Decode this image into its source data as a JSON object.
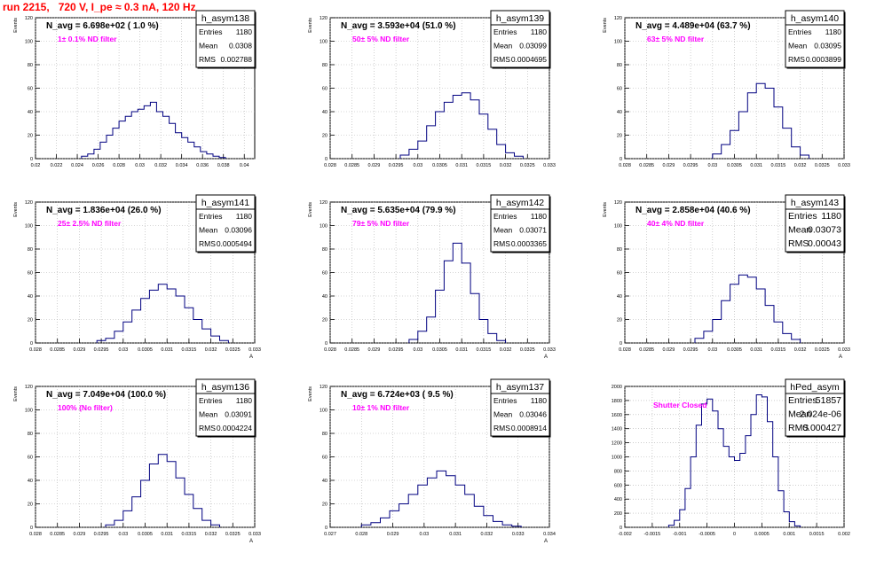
{
  "page_title": "run 2215,   720 V, I_pe ≈ 0.3 nA, 120 Hz",
  "colors": {
    "title": "#ff0000",
    "annotation": "#ff00ff",
    "histogram": "#000080",
    "grid": "#b0b0b0"
  },
  "chart_data": [
    {
      "type": "histogram",
      "stats_title": "h_asym138",
      "header": "N_avg = 6.698e+02 ( 1.0 %)",
      "annotation": "1± 0.1% ND filter",
      "stats": [
        [
          "Entries",
          "1180"
        ],
        [
          "Mean",
          "0.0308"
        ],
        [
          "RMS",
          "0.002788"
        ]
      ],
      "ylabel": "Events",
      "xlabel": "",
      "xlim": [
        0.02,
        0.041
      ],
      "ylim": [
        0,
        120
      ],
      "xticks": [
        "0.02",
        "0.022",
        "0.024",
        "0.026",
        "0.028",
        "0.03",
        "0.032",
        "0.034",
        "0.036",
        "0.038",
        "0.04"
      ],
      "yticks": [
        "0",
        "20",
        "40",
        "60",
        "80",
        "100",
        "120"
      ],
      "bin_edges": [
        0.0244,
        0.025,
        0.0256,
        0.0262,
        0.0268,
        0.0274,
        0.028,
        0.0286,
        0.0292,
        0.0298,
        0.0304,
        0.031,
        0.0316,
        0.0322,
        0.0328,
        0.0334,
        0.034,
        0.0346,
        0.0352,
        0.0358,
        0.0364,
        0.037,
        0.0376,
        0.0382
      ],
      "counts": [
        2,
        4,
        8,
        14,
        20,
        26,
        32,
        36,
        40,
        42,
        45,
        48,
        40,
        36,
        30,
        22,
        18,
        14,
        10,
        6,
        4,
        2,
        1
      ]
    },
    {
      "type": "histogram",
      "stats_title": "h_asym139",
      "header": "N_avg = 3.593e+04 (51.0 %)",
      "annotation": "50± 5% ND filter",
      "stats": [
        [
          "Entries",
          "1180"
        ],
        [
          "Mean",
          "0.03099"
        ],
        [
          "RMS",
          "0.0004695"
        ]
      ],
      "ylabel": "Events",
      "xlabel": "",
      "xlim": [
        0.028,
        0.033
      ],
      "ylim": [
        0,
        120
      ],
      "xticks": [
        "0.028",
        "0.0285",
        "0.029",
        "0.0295",
        "0.03",
        "0.0305",
        "0.031",
        "0.0315",
        "0.032",
        "0.0325",
        "0.033"
      ],
      "yticks": [
        "0",
        "20",
        "40",
        "60",
        "80",
        "100",
        "120"
      ],
      "bin_edges": [
        0.0296,
        0.0298,
        0.03,
        0.0302,
        0.0304,
        0.0306,
        0.0308,
        0.031,
        0.0312,
        0.0314,
        0.0316,
        0.0318,
        0.032,
        0.0322,
        0.0324
      ],
      "counts": [
        3,
        8,
        15,
        28,
        40,
        48,
        54,
        56,
        50,
        38,
        25,
        12,
        5,
        2
      ]
    },
    {
      "type": "histogram",
      "stats_title": "h_asym140",
      "header": "N_avg = 4.489e+04 (63.7 %)",
      "annotation": "63± 5% ND filter",
      "stats": [
        [
          "Entries",
          "1180"
        ],
        [
          "Mean",
          "0.03095"
        ],
        [
          "RMS",
          "0.0003899"
        ]
      ],
      "ylabel": "Events",
      "xlabel": "",
      "xlim": [
        0.028,
        0.033
      ],
      "ylim": [
        0,
        120
      ],
      "xticks": [
        "0.028",
        "0.0285",
        "0.029",
        "0.0295",
        "0.03",
        "0.0305",
        "0.031",
        "0.0315",
        "0.032",
        "0.0325",
        "0.033"
      ],
      "yticks": [
        "0",
        "20",
        "40",
        "60",
        "80",
        "100",
        "120"
      ],
      "bin_edges": [
        0.03,
        0.0302,
        0.0304,
        0.0306,
        0.0308,
        0.031,
        0.0312,
        0.0314,
        0.0316,
        0.0318,
        0.032,
        0.0322
      ],
      "counts": [
        4,
        12,
        24,
        40,
        56,
        64,
        60,
        44,
        26,
        10,
        3
      ]
    },
    {
      "type": "histogram",
      "stats_title": "h_asym141",
      "header": "N_avg = 1.836e+04 (26.0 %)",
      "annotation": "25± 2.5% ND filter",
      "stats": [
        [
          "Entries",
          "1180"
        ],
        [
          "Mean",
          "0.03096"
        ],
        [
          "RMS",
          "0.0005494"
        ]
      ],
      "ylabel": "Events",
      "xlabel": "A",
      "xlim": [
        0.028,
        0.033
      ],
      "ylim": [
        0,
        120
      ],
      "xticks": [
        "0.028",
        "0.0285",
        "0.029",
        "0.0295",
        "0.03",
        "0.0305",
        "0.031",
        "0.0315",
        "0.032",
        "0.0325",
        "0.033"
      ],
      "yticks": [
        "0",
        "20",
        "40",
        "60",
        "80",
        "100",
        "120"
      ],
      "bin_edges": [
        0.0294,
        0.0296,
        0.0298,
        0.03,
        0.0302,
        0.0304,
        0.0306,
        0.0308,
        0.031,
        0.0312,
        0.0314,
        0.0316,
        0.0318,
        0.032,
        0.0322,
        0.0324
      ],
      "counts": [
        2,
        4,
        10,
        18,
        28,
        38,
        45,
        50,
        46,
        40,
        30,
        20,
        12,
        6,
        2
      ]
    },
    {
      "type": "histogram",
      "stats_title": "h_asym142",
      "header": "N_avg = 5.635e+04 (79.9 %)",
      "annotation": "79± 5% ND filter",
      "stats": [
        [
          "Entries",
          "1180"
        ],
        [
          "Mean",
          "0.03071"
        ],
        [
          "RMS",
          "0.0003365"
        ]
      ],
      "ylabel": "Events",
      "xlabel": "A",
      "xlim": [
        0.028,
        0.033
      ],
      "ylim": [
        0,
        120
      ],
      "xticks": [
        "0.028",
        "0.0285",
        "0.029",
        "0.0295",
        "0.03",
        "0.0305",
        "0.031",
        "0.0315",
        "0.032",
        "0.0325",
        "0.033"
      ],
      "yticks": [
        "0",
        "20",
        "40",
        "60",
        "80",
        "100",
        "120"
      ],
      "bin_edges": [
        0.0298,
        0.03,
        0.0302,
        0.0304,
        0.0306,
        0.0308,
        0.031,
        0.0312,
        0.0314,
        0.0316,
        0.0318,
        0.032
      ],
      "counts": [
        3,
        10,
        22,
        45,
        70,
        85,
        68,
        42,
        20,
        8,
        2
      ]
    },
    {
      "type": "histogram",
      "stats_title": "h_asym143",
      "header": "N_avg = 2.858e+04 (40.6 %)",
      "annotation": "40± 4% ND filter",
      "stats": [
        [
          "Entries",
          "1180"
        ],
        [
          "Mean",
          "0.03073"
        ],
        [
          "RMS",
          "0.00043"
        ]
      ],
      "ylabel": "Events",
      "xlabel": "A",
      "xlim": [
        0.028,
        0.033
      ],
      "ylim": [
        0,
        120
      ],
      "xticks": [
        "0.028",
        "0.0285",
        "0.029",
        "0.0295",
        "0.03",
        "0.0305",
        "0.031",
        "0.0315",
        "0.032",
        "0.0325",
        "0.033"
      ],
      "yticks": [
        "0",
        "20",
        "40",
        "60",
        "80",
        "100",
        "120"
      ],
      "bin_edges": [
        0.0296,
        0.0298,
        0.03,
        0.0302,
        0.0304,
        0.0306,
        0.0308,
        0.031,
        0.0312,
        0.0314,
        0.0316,
        0.0318,
        0.032
      ],
      "counts": [
        4,
        10,
        20,
        36,
        50,
        58,
        56,
        46,
        32,
        18,
        8,
        3
      ]
    },
    {
      "type": "histogram",
      "stats_title": "h_asym136",
      "header": "N_avg = 7.049e+04 (100.0 %)",
      "annotation": "100% (No filter)",
      "stats": [
        [
          "Entries",
          "1180"
        ],
        [
          "Mean",
          "0.03091"
        ],
        [
          "RMS",
          "0.0004224"
        ]
      ],
      "ylabel": "Events",
      "xlabel": "A",
      "xlim": [
        0.028,
        0.033
      ],
      "ylim": [
        0,
        120
      ],
      "xticks": [
        "0.028",
        "0.0285",
        "0.029",
        "0.0295",
        "0.03",
        "0.0305",
        "0.031",
        "0.0315",
        "0.032",
        "0.0325",
        "0.033"
      ],
      "yticks": [
        "0",
        "20",
        "40",
        "60",
        "80",
        "100",
        "120"
      ],
      "bin_edges": [
        0.0296,
        0.0298,
        0.03,
        0.0302,
        0.0304,
        0.0306,
        0.0308,
        0.031,
        0.0312,
        0.0314,
        0.0316,
        0.0318,
        0.032,
        0.0322
      ],
      "counts": [
        2,
        6,
        14,
        26,
        40,
        54,
        62,
        56,
        42,
        28,
        16,
        6,
        2
      ]
    },
    {
      "type": "histogram",
      "stats_title": "h_asym137",
      "header": "N_avg = 6.724e+03 ( 9.5 %)",
      "annotation": "10± 1% ND filter",
      "stats": [
        [
          "Entries",
          "1180"
        ],
        [
          "Mean",
          "0.03046"
        ],
        [
          "RMS",
          "0.0008914"
        ]
      ],
      "ylabel": "Events",
      "xlabel": "A",
      "xlim": [
        0.027,
        0.034
      ],
      "ylim": [
        0,
        120
      ],
      "xticks": [
        "0.027",
        "0.028",
        "0.029",
        "0.03",
        "0.031",
        "0.032",
        "0.033",
        "0.034"
      ],
      "yticks": [
        "0",
        "20",
        "40",
        "60",
        "80",
        "100",
        "120"
      ],
      "bin_edges": [
        0.028,
        0.0283,
        0.0286,
        0.0289,
        0.0292,
        0.0295,
        0.0298,
        0.0301,
        0.0304,
        0.0307,
        0.031,
        0.0313,
        0.0316,
        0.0319,
        0.0322,
        0.0325,
        0.0328,
        0.0331
      ],
      "counts": [
        2,
        4,
        8,
        14,
        20,
        28,
        36,
        42,
        48,
        44,
        36,
        28,
        18,
        10,
        5,
        2,
        1
      ]
    },
    {
      "type": "histogram",
      "stats_title": "hPed_asym",
      "header": "",
      "annotation": "Shutter Closed",
      "stats": [
        [
          "Entries",
          "51857"
        ],
        [
          "Mean",
          "2.024e-06"
        ],
        [
          "RMS",
          "0.000427"
        ]
      ],
      "ylabel": "",
      "xlabel": "",
      "xlim": [
        -0.002,
        0.002
      ],
      "ylim": [
        0,
        2000
      ],
      "xticks": [
        "-0.002",
        "-0.0015",
        "-0.001",
        "-0.0005",
        "0",
        "0.0005",
        "0.001",
        "0.0015",
        "0.002"
      ],
      "yticks": [
        "0",
        "200",
        "400",
        "600",
        "800",
        "1000",
        "1200",
        "1400",
        "1600",
        "1800",
        "2000"
      ],
      "bin_edges": [
        -0.0012,
        -0.0011,
        -0.001,
        -0.0009,
        -0.0008,
        -0.0007,
        -0.0006,
        -0.0005,
        -0.0004,
        -0.0003,
        -0.0002,
        -0.0001,
        0.0,
        0.0001,
        0.0002,
        0.0003,
        0.0004,
        0.0005,
        0.0006,
        0.0007,
        0.0008,
        0.0009,
        0.001,
        0.0011,
        0.0012
      ],
      "counts": [
        30,
        100,
        250,
        550,
        1000,
        1450,
        1750,
        1820,
        1650,
        1400,
        1150,
        1000,
        950,
        1050,
        1300,
        1600,
        1880,
        1850,
        1500,
        1000,
        520,
        220,
        80,
        20
      ]
    }
  ]
}
